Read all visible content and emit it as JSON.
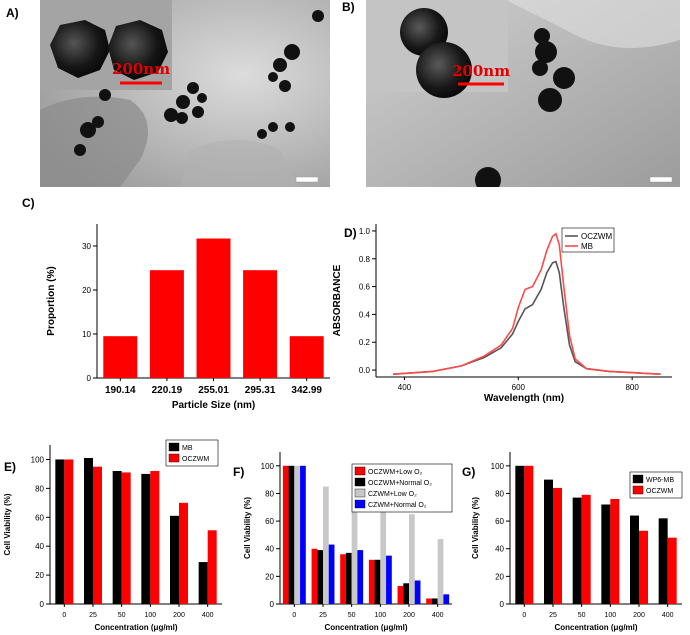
{
  "panels": {
    "a": {
      "label": "A)",
      "scale_text": "200nm"
    },
    "b": {
      "label": "B)",
      "scale_text": "200nm"
    },
    "c": {
      "label": "C)"
    },
    "d": {
      "label": "D)"
    },
    "e": {
      "label": "E)"
    },
    "f": {
      "label": "F)"
    },
    "g": {
      "label": "G)"
    }
  },
  "colors": {
    "red": "#ff0000",
    "black": "#000000",
    "gray": "#c8c8c8",
    "blue": "#0000ff",
    "dark_line": "#555555",
    "red_line": "#ff4a4a"
  },
  "chart_data": [
    {
      "id": "c",
      "type": "bar",
      "categories": [
        "190.14",
        "220.19",
        "255.01",
        "295.31",
        "342.99"
      ],
      "values": [
        9.5,
        24.5,
        31.7,
        24.5,
        9.5
      ],
      "xlabel": "Particle Size (nm)",
      "ylabel": "Proportion (%)",
      "ylim": [
        0,
        35
      ],
      "yticks": [
        0,
        10,
        20,
        30
      ],
      "color": "#ff0000"
    },
    {
      "id": "d",
      "type": "line",
      "xlabel": "Wavelength (nm)",
      "ylabel": "ABSORBANCE",
      "xlim": [
        350,
        870
      ],
      "ylim": [
        -0.05,
        1.05
      ],
      "xticks": [
        400,
        600,
        800
      ],
      "yticks": [
        0.0,
        0.2,
        0.4,
        0.6,
        0.8,
        1.0
      ],
      "ytick_labels": [
        "0.0",
        "0.2",
        "0.4",
        "0.6",
        "0.8",
        "1.0"
      ],
      "legend": "top-right",
      "series": [
        {
          "name": "OCZWM",
          "color": "#555555",
          "x": [
            380,
            450,
            500,
            540,
            570,
            590,
            600,
            612,
            625,
            640,
            650,
            660,
            666,
            672,
            680,
            690,
            700,
            720,
            760,
            850
          ],
          "y": [
            -0.03,
            -0.01,
            0.03,
            0.09,
            0.16,
            0.26,
            0.35,
            0.44,
            0.47,
            0.58,
            0.7,
            0.77,
            0.78,
            0.7,
            0.45,
            0.18,
            0.06,
            0.01,
            -0.01,
            -0.03
          ]
        },
        {
          "name": "MB",
          "color": "#ff4a4a",
          "x": [
            380,
            450,
            500,
            540,
            570,
            590,
            600,
            612,
            625,
            640,
            650,
            660,
            666,
            672,
            680,
            690,
            700,
            720,
            760,
            850
          ],
          "y": [
            -0.03,
            -0.01,
            0.03,
            0.1,
            0.18,
            0.3,
            0.45,
            0.58,
            0.6,
            0.72,
            0.86,
            0.96,
            0.98,
            0.9,
            0.6,
            0.25,
            0.08,
            0.01,
            -0.01,
            -0.03
          ]
        }
      ]
    },
    {
      "id": "e",
      "type": "bar",
      "categories": [
        "0",
        "25",
        "50",
        "100",
        "200",
        "400"
      ],
      "xlabel": "Concentration (μg/ml)",
      "ylabel": "Cell Viability (%)",
      "ylim": [
        0,
        110
      ],
      "yticks": [
        0,
        20,
        40,
        60,
        80,
        100
      ],
      "legend": "top-right",
      "series": [
        {
          "name": "MB",
          "color": "#000000",
          "values": [
            100,
            101,
            92,
            90,
            61,
            29
          ]
        },
        {
          "name": "OCZWM",
          "color": "#ff0000",
          "values": [
            100,
            95,
            91,
            92,
            70,
            51
          ]
        }
      ]
    },
    {
      "id": "f",
      "type": "bar",
      "categories": [
        "0",
        "25",
        "50",
        "100",
        "200",
        "400"
      ],
      "xlabel": "Concentration (μg/ml)",
      "ylabel": "Cell Viability (%)",
      "ylim": [
        0,
        110
      ],
      "yticks": [
        0,
        20,
        40,
        60,
        80,
        100
      ],
      "legend": "top-right",
      "series": [
        {
          "name": "OCZWM+Low O₂",
          "color": "#ff0000",
          "values": [
            100,
            40,
            36,
            32,
            13,
            4
          ]
        },
        {
          "name": "OCZWM+Normal O₂",
          "color": "#000000",
          "values": [
            100,
            39,
            37,
            32,
            15,
            4
          ]
        },
        {
          "name": "CZWM+Low O₂",
          "color": "#c8c8c8",
          "values": [
            100,
            85,
            77,
            75,
            65,
            47
          ]
        },
        {
          "name": "CZWM+Normal O₂",
          "color": "#0000ff",
          "values": [
            100,
            43,
            39,
            35,
            17,
            7
          ]
        }
      ]
    },
    {
      "id": "g",
      "type": "bar",
      "categories": [
        "0",
        "25",
        "50",
        "100",
        "200",
        "400"
      ],
      "xlabel": "Concentration (μg/ml)",
      "ylabel": "Cell Viability (%)",
      "ylim": [
        0,
        110
      ],
      "yticks": [
        0,
        20,
        40,
        60,
        80,
        100
      ],
      "legend": "top-right",
      "series": [
        {
          "name": "WP6-MB",
          "color": "#000000",
          "values": [
            100,
            90,
            77,
            72,
            64,
            62
          ]
        },
        {
          "name": "OCZWM",
          "color": "#ff0000",
          "values": [
            100,
            84,
            79,
            76,
            53,
            48
          ]
        }
      ]
    }
  ]
}
